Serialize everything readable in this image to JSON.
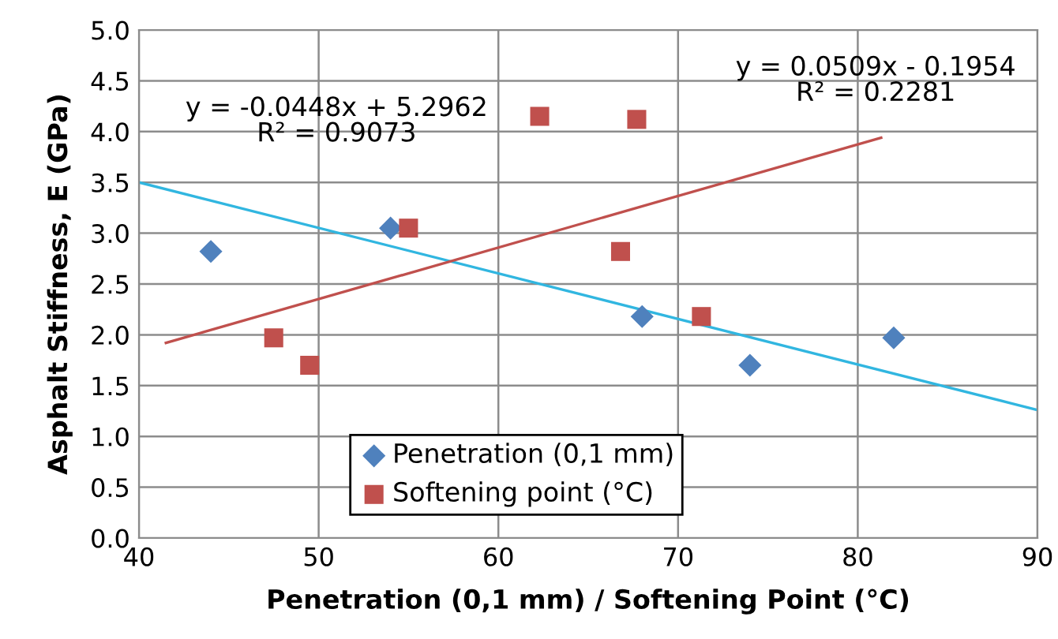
{
  "chart_data": {
    "type": "scatter",
    "xlabel": "Penetration (0,1 mm) / Softening Point (°C)",
    "ylabel": "Asphalt Stiffness, E (GPa)",
    "xlim": [
      40,
      90
    ],
    "xticks": [
      40,
      50,
      60,
      70,
      80,
      90
    ],
    "ylim": [
      0,
      5
    ],
    "yticks": [
      {
        "value": 0,
        "label": "0.0"
      },
      {
        "value": 0.5,
        "label": "0.5"
      },
      {
        "value": 1,
        "label": "1.0"
      },
      {
        "value": 1.5,
        "label": "1.5"
      },
      {
        "value": 2,
        "label": "2.0"
      },
      {
        "value": 2.5,
        "label": "2.5"
      },
      {
        "value": 3,
        "label": "3.0"
      },
      {
        "value": 3.5,
        "label": "3.5"
      },
      {
        "value": 4,
        "label": "4.0"
      },
      {
        "value": 4.5,
        "label": "4.5"
      },
      {
        "value": 5,
        "label": "5.0"
      }
    ],
    "grid": true,
    "legend": "bottom",
    "series": [
      {
        "name": "Penetration (0,1 mm)",
        "color": "#4f81bd",
        "marker": "diamond",
        "x": [
          44,
          54,
          68,
          74,
          82
        ],
        "values": [
          2.82,
          3.05,
          2.18,
          1.7,
          1.97
        ]
      },
      {
        "name": "Softening point (°C)",
        "color": "#c0504d",
        "marker": "square",
        "x": [
          47.5,
          49.5,
          55,
          62.3,
          67.7,
          66.8,
          71.3
        ],
        "values": [
          1.97,
          1.7,
          3.05,
          4.15,
          4.12,
          2.82,
          2.18
        ]
      },
      {
        "type": "line",
        "color": "#31b6e0",
        "marker": "none",
        "x": [
          40,
          90
        ],
        "values": [
          3.5,
          1.26
        ]
      },
      {
        "type": "line",
        "color": "#c0504d",
        "marker": "none",
        "x": [
          41.5,
          81.3
        ],
        "values": [
          1.92,
          3.94
        ]
      }
    ],
    "annotations": [
      "y = -0.0448x + 5.2962\nR² = 0.9073",
      "y = 0.0509x - 0.1954\nR² = 0.2281"
    ]
  }
}
